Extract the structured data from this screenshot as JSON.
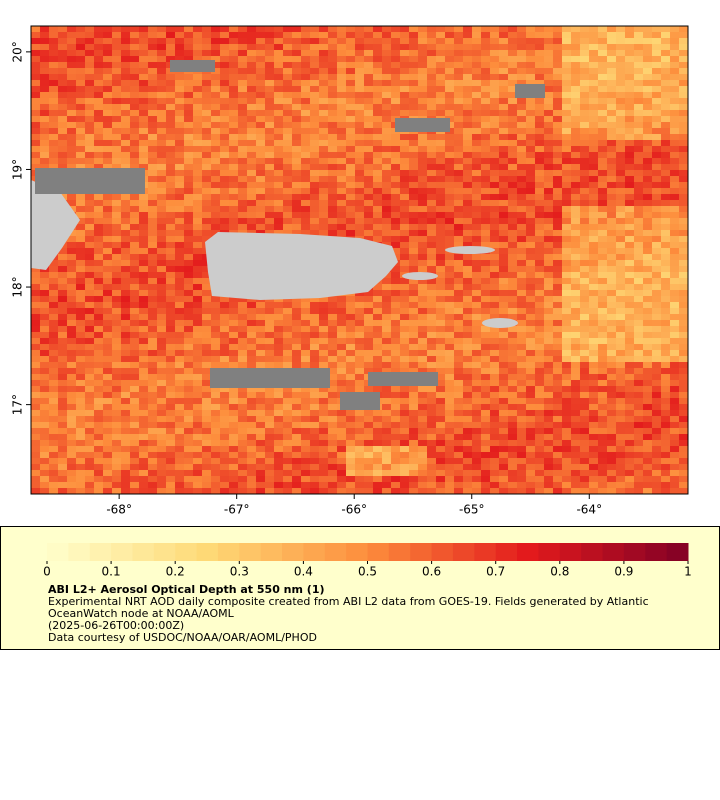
{
  "chart_data": {
    "type": "map",
    "xlim": [
      -68.75,
      -63.16
    ],
    "ylim": [
      16.24,
      20.22
    ],
    "xticks": [
      {
        "value": -68,
        "label": "-68°"
      },
      {
        "value": -67,
        "label": "-67°"
      },
      {
        "value": -66,
        "label": "-66°"
      },
      {
        "value": -65,
        "label": "-65°"
      },
      {
        "value": -64,
        "label": "-64°"
      }
    ],
    "yticks": [
      {
        "value": 17,
        "label": "17°"
      },
      {
        "value": 18,
        "label": "18°"
      },
      {
        "value": 19,
        "label": "19°"
      },
      {
        "value": 20,
        "label": "20°"
      }
    ],
    "colorbar": {
      "range": [
        0,
        1
      ],
      "ticks": [
        0,
        0.1,
        0.2,
        0.3,
        0.4,
        0.5,
        0.6,
        0.7,
        0.8,
        0.9,
        1
      ],
      "steps": 30,
      "colors": [
        "#ffffcc",
        "#fed976",
        "#fd8d3c",
        "#e31a1c",
        "#800026"
      ]
    },
    "title": "ABI L2+ Aerosol Optical Depth at 550 nm (1)",
    "description": [
      "Experimental NRT AOD daily composite created from ABI L2 data from GOES-19. Fields generated by Atlantic",
      "OceanWatch node at NOAA/AOML",
      "(2025-06-26T00:00:00Z)",
      "Data courtesy of USDOC/NOAA/OAR/AOML/PHOD"
    ]
  }
}
